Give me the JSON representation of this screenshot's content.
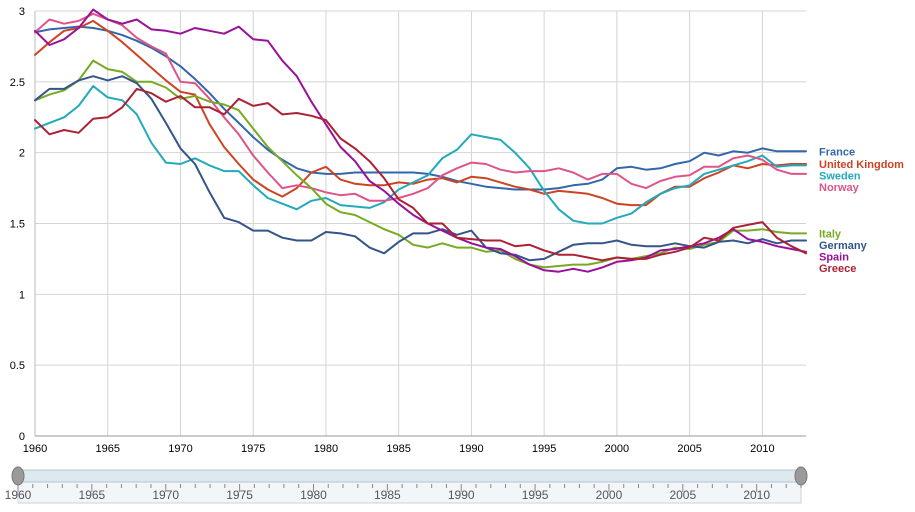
{
  "chart_data": {
    "type": "line",
    "title": "",
    "xlabel": "",
    "ylabel": "",
    "xlim": [
      1960,
      2013
    ],
    "ylim": [
      0,
      3
    ],
    "grid": true,
    "legend_placement": "right, aligned with line ends",
    "x_ticks": [
      1960,
      1965,
      1970,
      1975,
      1980,
      1985,
      1990,
      1995,
      2000,
      2005,
      2010
    ],
    "y_ticks": [
      0,
      0.5,
      1,
      1.5,
      2,
      2.5,
      3
    ],
    "y_tick_labels": [
      "0",
      "0.5",
      "1",
      "1.5",
      "2",
      "2.5",
      "3"
    ],
    "slider_ticks": [
      1960,
      1965,
      1970,
      1975,
      1980,
      1985,
      1990,
      1995,
      2000,
      2005,
      2010
    ],
    "x": [
      1960,
      1961,
      1962,
      1963,
      1964,
      1965,
      1966,
      1967,
      1968,
      1969,
      1970,
      1971,
      1972,
      1973,
      1974,
      1975,
      1976,
      1977,
      1978,
      1979,
      1980,
      1981,
      1982,
      1983,
      1984,
      1985,
      1986,
      1987,
      1988,
      1989,
      1990,
      1991,
      1992,
      1993,
      1994,
      1995,
      1996,
      1997,
      1998,
      1999,
      2000,
      2001,
      2002,
      2003,
      2004,
      2005,
      2006,
      2007,
      2008,
      2009,
      2010,
      2011,
      2012,
      2013
    ],
    "series": [
      {
        "name": "France",
        "color": "#3366aa",
        "values": [
          2.85,
          2.87,
          2.88,
          2.89,
          2.88,
          2.86,
          2.83,
          2.79,
          2.74,
          2.68,
          2.61,
          2.52,
          2.42,
          2.31,
          2.21,
          2.11,
          2.02,
          1.95,
          1.89,
          1.86,
          1.85,
          1.85,
          1.86,
          1.86,
          1.86,
          1.86,
          1.86,
          1.85,
          1.83,
          1.8,
          1.78,
          1.76,
          1.75,
          1.74,
          1.74,
          1.74,
          1.75,
          1.77,
          1.78,
          1.81,
          1.89,
          1.9,
          1.88,
          1.89,
          1.92,
          1.94,
          2.0,
          1.98,
          2.01,
          2.0,
          2.03,
          2.01,
          2.01,
          2.01
        ]
      },
      {
        "name": "United Kingdom",
        "color": "#cc4422",
        "values": [
          2.69,
          2.78,
          2.86,
          2.88,
          2.93,
          2.86,
          2.78,
          2.69,
          2.6,
          2.51,
          2.43,
          2.41,
          2.2,
          2.04,
          1.92,
          1.81,
          1.74,
          1.69,
          1.75,
          1.86,
          1.9,
          1.81,
          1.78,
          1.77,
          1.77,
          1.79,
          1.78,
          1.81,
          1.82,
          1.79,
          1.83,
          1.82,
          1.79,
          1.76,
          1.74,
          1.71,
          1.73,
          1.72,
          1.71,
          1.68,
          1.64,
          1.63,
          1.63,
          1.71,
          1.76,
          1.76,
          1.82,
          1.86,
          1.91,
          1.89,
          1.92,
          1.91,
          1.92,
          1.92
        ]
      },
      {
        "name": "Sweden",
        "color": "#22aabb",
        "values": [
          2.17,
          2.21,
          2.25,
          2.33,
          2.47,
          2.39,
          2.37,
          2.27,
          2.07,
          1.93,
          1.92,
          1.96,
          1.91,
          1.87,
          1.87,
          1.77,
          1.68,
          1.64,
          1.6,
          1.66,
          1.68,
          1.63,
          1.62,
          1.61,
          1.65,
          1.74,
          1.79,
          1.84,
          1.96,
          2.02,
          2.13,
          2.11,
          2.09,
          2.0,
          1.89,
          1.73,
          1.6,
          1.52,
          1.5,
          1.5,
          1.54,
          1.57,
          1.65,
          1.71,
          1.75,
          1.77,
          1.85,
          1.88,
          1.91,
          1.94,
          1.98,
          1.9,
          1.91,
          1.91
        ]
      },
      {
        "name": "Norway",
        "color": "#dd5588",
        "values": [
          2.85,
          2.94,
          2.91,
          2.93,
          2.98,
          2.94,
          2.9,
          2.81,
          2.75,
          2.7,
          2.5,
          2.49,
          2.38,
          2.25,
          2.13,
          1.98,
          1.86,
          1.75,
          1.77,
          1.75,
          1.72,
          1.7,
          1.71,
          1.66,
          1.66,
          1.68,
          1.71,
          1.75,
          1.84,
          1.89,
          1.93,
          1.92,
          1.88,
          1.86,
          1.87,
          1.87,
          1.89,
          1.86,
          1.81,
          1.85,
          1.85,
          1.78,
          1.75,
          1.8,
          1.83,
          1.84,
          1.9,
          1.9,
          1.96,
          1.98,
          1.95,
          1.88,
          1.85,
          1.85
        ]
      },
      {
        "name": "Italy",
        "color": "#77aa22",
        "values": [
          2.37,
          2.41,
          2.44,
          2.51,
          2.65,
          2.59,
          2.57,
          2.5,
          2.5,
          2.46,
          2.38,
          2.4,
          2.36,
          2.34,
          2.3,
          2.17,
          2.04,
          1.94,
          1.84,
          1.75,
          1.64,
          1.58,
          1.56,
          1.51,
          1.46,
          1.42,
          1.35,
          1.33,
          1.36,
          1.33,
          1.33,
          1.3,
          1.31,
          1.25,
          1.21,
          1.19,
          1.2,
          1.21,
          1.21,
          1.23,
          1.26,
          1.25,
          1.27,
          1.29,
          1.33,
          1.32,
          1.35,
          1.37,
          1.45,
          1.45,
          1.46,
          1.44,
          1.43,
          1.43
        ]
      },
      {
        "name": "Germany",
        "color": "#335588",
        "values": [
          2.37,
          2.45,
          2.45,
          2.51,
          2.54,
          2.51,
          2.54,
          2.49,
          2.38,
          2.21,
          2.03,
          1.92,
          1.72,
          1.54,
          1.51,
          1.45,
          1.45,
          1.4,
          1.38,
          1.38,
          1.44,
          1.43,
          1.41,
          1.33,
          1.29,
          1.37,
          1.43,
          1.43,
          1.46,
          1.42,
          1.45,
          1.33,
          1.29,
          1.28,
          1.24,
          1.25,
          1.3,
          1.35,
          1.36,
          1.36,
          1.38,
          1.35,
          1.34,
          1.34,
          1.36,
          1.34,
          1.33,
          1.37,
          1.38,
          1.36,
          1.39,
          1.36,
          1.38,
          1.38
        ]
      },
      {
        "name": "Spain",
        "color": "#991199",
        "values": [
          2.86,
          2.76,
          2.8,
          2.88,
          3.01,
          2.94,
          2.91,
          2.94,
          2.87,
          2.86,
          2.84,
          2.88,
          2.86,
          2.84,
          2.89,
          2.8,
          2.79,
          2.65,
          2.54,
          2.36,
          2.2,
          2.04,
          1.94,
          1.8,
          1.73,
          1.64,
          1.56,
          1.5,
          1.45,
          1.4,
          1.36,
          1.33,
          1.32,
          1.27,
          1.21,
          1.17,
          1.16,
          1.18,
          1.16,
          1.19,
          1.23,
          1.24,
          1.26,
          1.31,
          1.32,
          1.34,
          1.36,
          1.4,
          1.46,
          1.39,
          1.37,
          1.34,
          1.32,
          1.3
        ]
      },
      {
        "name": "Greece",
        "color": "#aa2233",
        "values": [
          2.23,
          2.13,
          2.16,
          2.14,
          2.24,
          2.25,
          2.32,
          2.45,
          2.42,
          2.36,
          2.4,
          2.32,
          2.32,
          2.27,
          2.38,
          2.33,
          2.35,
          2.27,
          2.28,
          2.26,
          2.23,
          2.1,
          2.03,
          1.94,
          1.82,
          1.67,
          1.61,
          1.5,
          1.5,
          1.4,
          1.39,
          1.38,
          1.38,
          1.34,
          1.35,
          1.31,
          1.28,
          1.28,
          1.26,
          1.24,
          1.26,
          1.25,
          1.25,
          1.28,
          1.3,
          1.33,
          1.4,
          1.38,
          1.47,
          1.49,
          1.51,
          1.4,
          1.34,
          1.29
        ]
      }
    ]
  }
}
